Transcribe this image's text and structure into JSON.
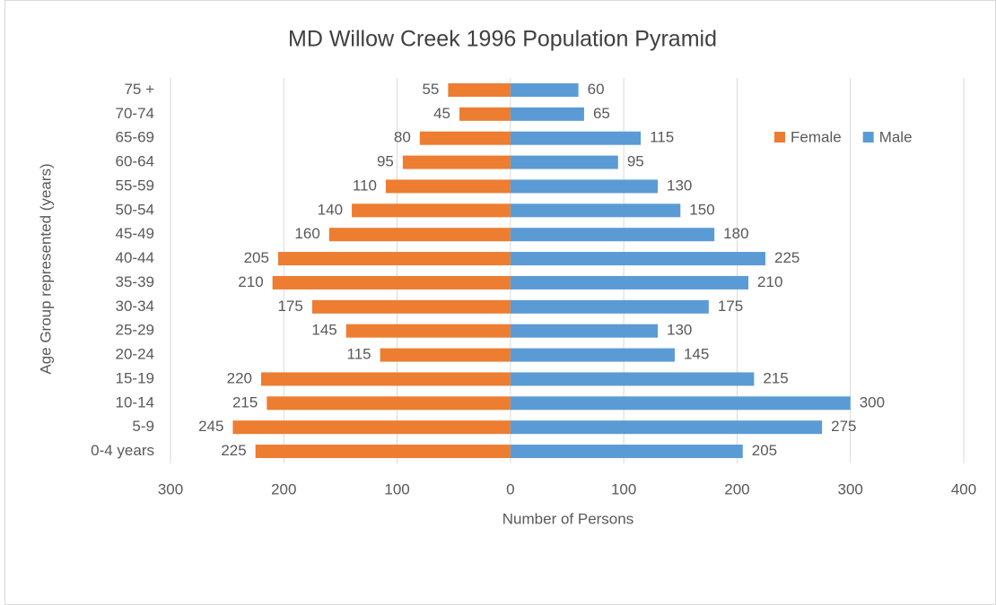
{
  "chart_data": {
    "type": "pyramid",
    "title": "MD Willow Creek 1996 Population Pyramid",
    "x_label": "Number of Persons",
    "y_label": "Age Group represented (years)",
    "categories": [
      "75 +",
      "70-74",
      "65-69",
      "60-64",
      "55-59",
      "50-54",
      "45-49",
      "40-44",
      "35-39",
      "30-34",
      "25-29",
      "20-24",
      "15-19",
      "10-14",
      "5-9",
      "0-4 years"
    ],
    "series": [
      {
        "name": "Female",
        "color": "#ed7d31",
        "values": [
          -55,
          -45,
          -80,
          -95,
          -110,
          -140,
          -160,
          -205,
          -210,
          -175,
          -145,
          -115,
          -220,
          -215,
          -245,
          -225
        ],
        "value_labels": [
          "55",
          "45",
          "80",
          "95",
          "110",
          "140",
          "160",
          "205",
          "210",
          "175",
          "145",
          "115",
          "220",
          "215",
          "245",
          "225"
        ]
      },
      {
        "name": "Male",
        "color": "#5b9bd5",
        "values": [
          60,
          65,
          115,
          95,
          130,
          150,
          180,
          225,
          210,
          175,
          130,
          145,
          215,
          300,
          275,
          205
        ]
      }
    ],
    "xlim": [
      -300,
      400
    ],
    "xticks": [
      {
        "value": -300,
        "label": "300"
      },
      {
        "value": -200,
        "label": "200"
      },
      {
        "value": -100,
        "label": "100"
      },
      0,
      100,
      200,
      300,
      400
    ],
    "grid": true,
    "legend": "top-right"
  }
}
